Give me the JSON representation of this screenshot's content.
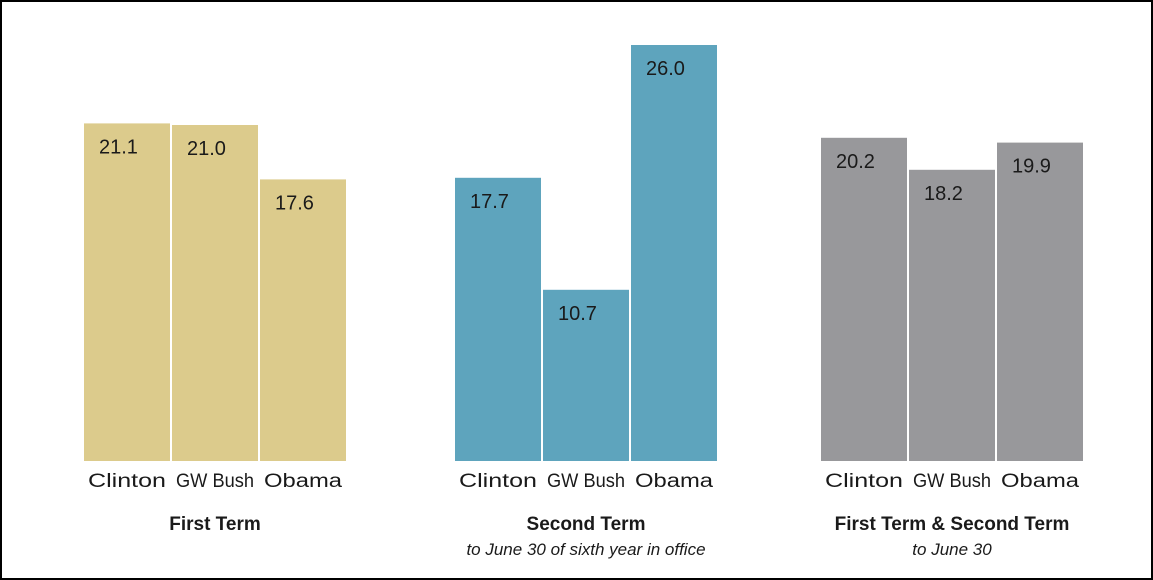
{
  "chart_data": [
    {
      "type": "bar",
      "title": "First Term",
      "subtitle": "",
      "categories": [
        "Clinton",
        "GW Bush",
        "Obama"
      ],
      "values": [
        21.1,
        21.0,
        17.6
      ],
      "value_labels": [
        "21.1",
        "21.0",
        "17.6"
      ],
      "color": "#dccb8c",
      "ylim": [
        0,
        26.0
      ],
      "grid": false
    },
    {
      "type": "bar",
      "title": "Second Term",
      "subtitle": "to June 30 of sixth year in office",
      "categories": [
        "Clinton",
        "GW Bush",
        "Obama"
      ],
      "values": [
        17.7,
        10.7,
        26.0
      ],
      "value_labels": [
        "17.7",
        "10.7",
        "26.0"
      ],
      "color": "#5ea4bd",
      "ylim": [
        0,
        26.0
      ],
      "grid": false
    },
    {
      "type": "bar",
      "title": "First Term & Second Term",
      "subtitle": "to June 30",
      "categories": [
        "Clinton",
        "GW Bush",
        "Obama"
      ],
      "values": [
        20.2,
        18.2,
        19.9
      ],
      "value_labels": [
        "20.2",
        "18.2",
        "19.9"
      ],
      "color": "#98989b",
      "ylim": [
        0,
        26.0
      ],
      "grid": false
    }
  ]
}
